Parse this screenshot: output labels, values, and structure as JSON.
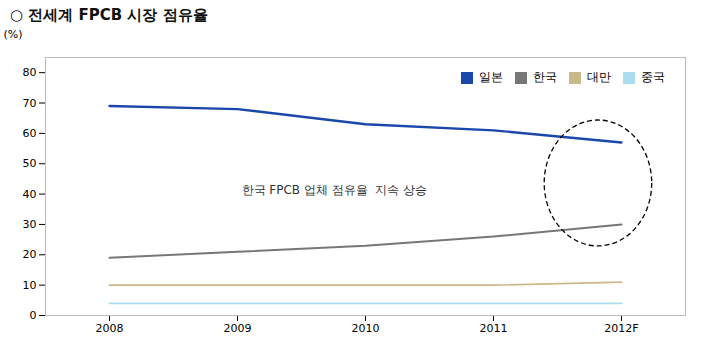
{
  "chart_data": {
    "type": "line",
    "title": "○ 전세계 FPCB 시장 점유율",
    "ylabel": "(%)",
    "categories": [
      "2008",
      "2009",
      "2010",
      "2011",
      "2012F"
    ],
    "series": [
      {
        "name": "일본",
        "color": "#1a47aa",
        "values": [
          69,
          68,
          63,
          61,
          57
        ]
      },
      {
        "name": "한국",
        "color": "#777777",
        "values": [
          19,
          21,
          23,
          26,
          30
        ]
      },
      {
        "name": "대만",
        "color": "#c8b88a",
        "values": [
          10,
          10,
          10,
          10,
          11
        ]
      },
      {
        "name": "중국",
        "color": "#aaddee",
        "values": [
          4,
          4,
          4,
          4,
          4
        ]
      }
    ],
    "ylim": [
      0,
      85
    ],
    "yticks": [
      0,
      10,
      20,
      30,
      40,
      50,
      60,
      70,
      80
    ],
    "grid": false,
    "legend": "upper right",
    "annotations": [
      "한국 FPCB 업체 점유율  지속 상승"
    ]
  }
}
